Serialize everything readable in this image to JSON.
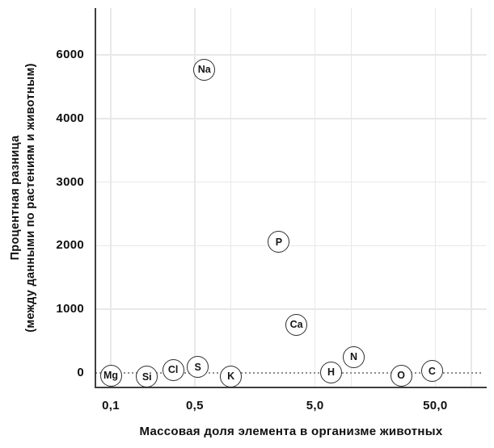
{
  "chart_data": {
    "type": "scatter",
    "title": "",
    "xlabel": "Массовая доля элемента в организме животных",
    "ylabel": [
      "Процентная разница",
      "(между данными по растениям и животным)"
    ],
    "x_scale": "log",
    "x_ticks": [
      {
        "value": 0.1,
        "label": "0,1"
      },
      {
        "value": 0.5,
        "label": "0,5"
      },
      {
        "value": 5,
        "label": "5,0"
      },
      {
        "value": 50,
        "label": "50,0"
      }
    ],
    "x_gridlines": [
      0.1,
      0.5,
      1,
      5,
      10,
      50,
      100
    ],
    "y_ticks": [
      {
        "value": 0,
        "label": "0"
      },
      {
        "value": 1000,
        "label": "1000"
      },
      {
        "value": 2000,
        "label": "2000"
      },
      {
        "value": 3000,
        "label": "3000"
      },
      {
        "value": 4000,
        "label": "4000"
      },
      {
        "value": 6000,
        "label": "6000"
      }
    ],
    "zero_line_value": 0,
    "grid": true,
    "legend_position": "none",
    "points": [
      {
        "label": "Mg",
        "x": 0.1,
        "y": -40
      },
      {
        "label": "Si",
        "x": 0.2,
        "y": -60
      },
      {
        "label": "Cl",
        "x": 0.33,
        "y": 50
      },
      {
        "label": "S",
        "x": 0.53,
        "y": 90
      },
      {
        "label": "Na",
        "x": 0.6,
        "y": 5540
      },
      {
        "label": "K",
        "x": 1.0,
        "y": -55
      },
      {
        "label": "P",
        "x": 2.5,
        "y": 2060
      },
      {
        "label": "Ca",
        "x": 3.5,
        "y": 760
      },
      {
        "label": "H",
        "x": 6.8,
        "y": 10
      },
      {
        "label": "N",
        "x": 10.5,
        "y": 250
      },
      {
        "label": "O",
        "x": 26,
        "y": -40
      },
      {
        "label": "C",
        "x": 47,
        "y": 30
      }
    ]
  },
  "colors": {
    "background": "#ffffff",
    "grid": "#e8e8e8",
    "axis": "#3f3f3f",
    "zero_line": "#8c8c8c",
    "point_fill": "#ffffff",
    "point_stroke": "#2d2d2d",
    "text": "#111111"
  }
}
